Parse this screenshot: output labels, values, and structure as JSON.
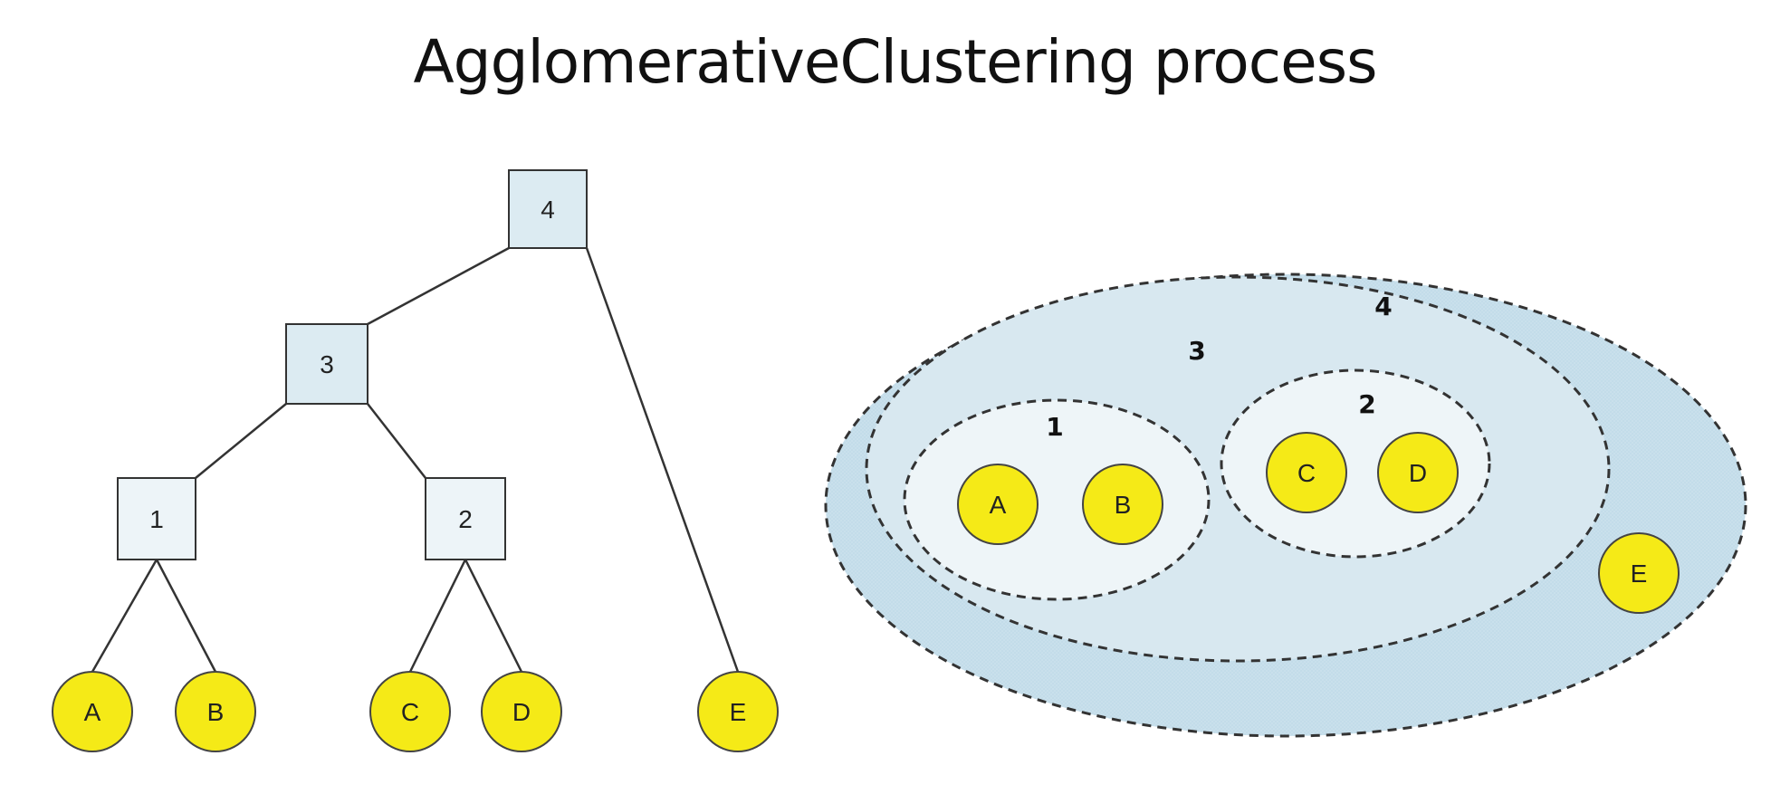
{
  "title": "AgglomerativeClustering process",
  "colors": {
    "leaf_fill": "#f5ea17",
    "leaf_stroke": "#444444",
    "cluster_fill": "#dcebf2",
    "outer_fill": "#c9e0ec",
    "inner_fill": "#edf4f8",
    "edge": "#333333",
    "dash": "#333333"
  },
  "dendrogram": {
    "nodes": [
      {
        "id": "n4",
        "label": "4"
      },
      {
        "id": "n3",
        "label": "3"
      },
      {
        "id": "n1",
        "label": "1"
      },
      {
        "id": "n2",
        "label": "2"
      }
    ],
    "leaves": [
      {
        "id": "A",
        "label": "A"
      },
      {
        "id": "B",
        "label": "B"
      },
      {
        "id": "C",
        "label": "C"
      },
      {
        "id": "D",
        "label": "D"
      },
      {
        "id": "E",
        "label": "E"
      }
    ],
    "edges": [
      [
        "n4",
        "n3"
      ],
      [
        "n4",
        "E"
      ],
      [
        "n3",
        "n1"
      ],
      [
        "n3",
        "n2"
      ],
      [
        "n1",
        "A"
      ],
      [
        "n1",
        "B"
      ],
      [
        "n2",
        "C"
      ],
      [
        "n2",
        "D"
      ]
    ]
  },
  "cluster_view": {
    "clusters": [
      {
        "id": "c4",
        "label": "4"
      },
      {
        "id": "c3",
        "label": "3"
      },
      {
        "id": "c1",
        "label": "1"
      },
      {
        "id": "c2",
        "label": "2"
      }
    ],
    "leaves": [
      {
        "id": "A",
        "label": "A"
      },
      {
        "id": "B",
        "label": "B"
      },
      {
        "id": "C",
        "label": "C"
      },
      {
        "id": "D",
        "label": "D"
      },
      {
        "id": "E",
        "label": "E"
      }
    ]
  }
}
